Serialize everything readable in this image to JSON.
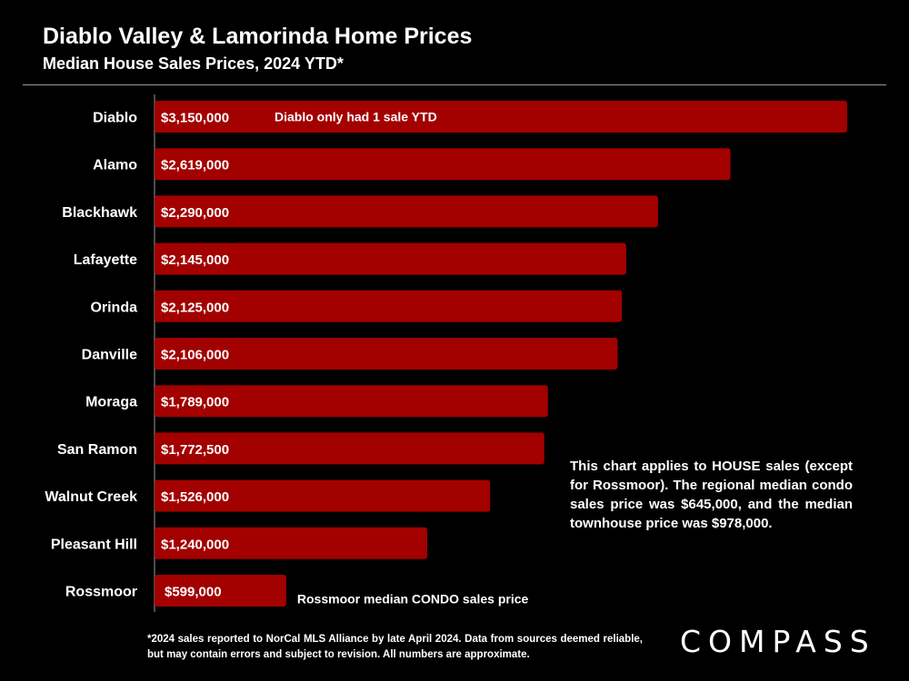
{
  "header": {
    "title": "Diablo Valley & Lamorinda Home Prices",
    "subtitle": "Median House Sales Prices, 2024 YTD*"
  },
  "chart_data": {
    "type": "bar",
    "orientation": "horizontal",
    "title": "Median House Sales Prices, 2024 YTD*",
    "categories": [
      "Diablo",
      "Alamo",
      "Blackhawk",
      "Lafayette",
      "Orinda",
      "Danville",
      "Moraga",
      "San Ramon",
      "Walnut Creek",
      "Pleasant Hill",
      "Rossmoor"
    ],
    "values": [
      3150000,
      2619000,
      2290000,
      2145000,
      2125000,
      2106000,
      1789000,
      1772500,
      1526000,
      1240000,
      599000
    ],
    "value_labels": [
      "$3,150,000",
      "$2,619,000",
      "$2,290,000",
      "$2,145,000",
      "$2,125,000",
      "$2,106,000",
      "$1,789,000",
      "$1,772,500",
      "$1,526,000",
      "$1,240,000",
      "$599,000"
    ],
    "annotations": [
      "Diablo only had 1 sale YTD",
      "",
      "",
      "",
      "",
      "",
      "",
      "",
      "",
      "",
      "Rossmoor median CONDO sales price"
    ],
    "xlim": [
      0,
      3150000
    ],
    "grid": false,
    "bar_color": "#a30000"
  },
  "side_note": "This chart applies to HOUSE sales (except for Rossmoor). The regional median condo sales price was $645,000, and the median townhouse price was $978,000.",
  "footnote": "*2024 sales reported to NorCal MLS Alliance by late April 2024. Data from sources deemed reliable, but may contain errors and subject to revision. All numbers are approximate.",
  "brand": {
    "logo_text": "COMPASS"
  }
}
